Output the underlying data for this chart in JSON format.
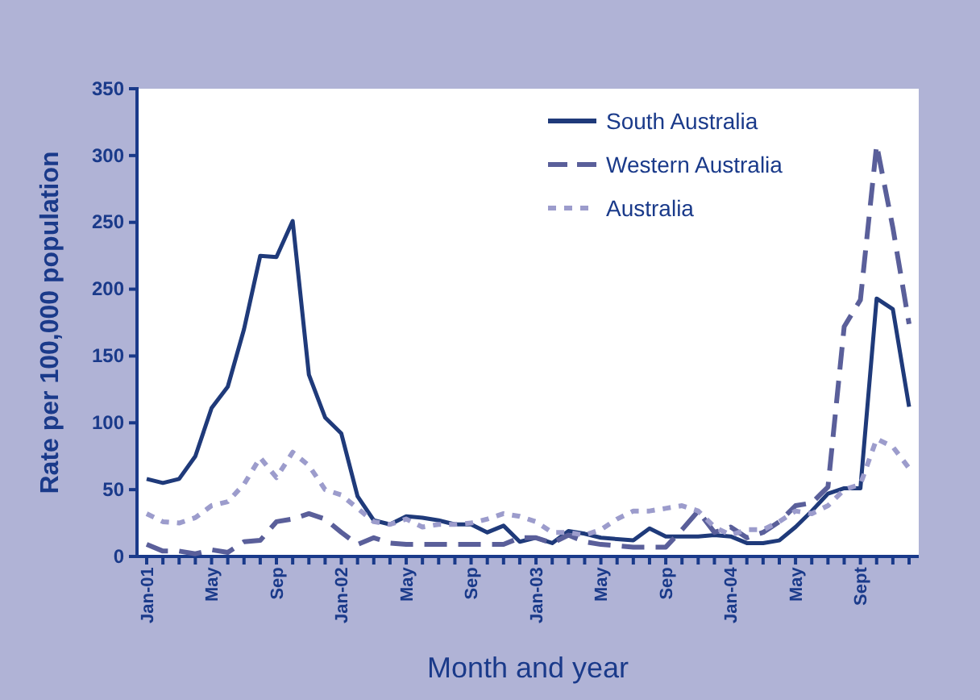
{
  "chart_data": {
    "type": "line",
    "xlabel": "Month and year",
    "ylabel": "Rate per 100,000 population",
    "categories": [
      "Jan-01",
      null,
      null,
      null,
      "May",
      null,
      null,
      null,
      "Sep",
      null,
      null,
      null,
      "Jan-02",
      null,
      null,
      null,
      "May",
      null,
      null,
      null,
      "Sep",
      null,
      null,
      null,
      "Jan-03",
      null,
      null,
      null,
      "May",
      null,
      null,
      null,
      "Sep",
      null,
      null,
      null,
      "Jan-04",
      null,
      null,
      null,
      "May",
      null,
      null,
      null,
      "Sept",
      null,
      null,
      null
    ],
    "ylim": [
      0,
      350
    ],
    "yticks": [
      0,
      50,
      100,
      150,
      200,
      250,
      300,
      350
    ],
    "grid": false,
    "legend": "top right",
    "marker": "none",
    "series": [
      {
        "name": "South Australia",
        "color": "#1f3a7a",
        "line_style": "solid",
        "values": [
          58,
          55,
          58,
          75,
          111,
          127,
          170,
          225,
          224,
          251,
          136,
          104,
          92,
          45,
          27,
          24,
          30,
          29,
          27,
          24,
          24,
          18,
          23,
          11,
          14,
          10,
          19,
          17,
          14,
          13,
          12,
          21,
          15,
          15,
          15,
          16,
          15,
          10,
          10,
          12,
          22,
          34,
          47,
          51,
          51,
          193,
          185,
          112
        ]
      },
      {
        "name": "Western Australia",
        "color": "#5a5f9a",
        "line_style": "dashed",
        "values": [
          9,
          4,
          4,
          2,
          5,
          3,
          11,
          12,
          26,
          28,
          32,
          28,
          18,
          9,
          14,
          10,
          9,
          9,
          9,
          9,
          9,
          9,
          9,
          14,
          14,
          10,
          16,
          11,
          9,
          8,
          7,
          7,
          7,
          20,
          34,
          18,
          22,
          14,
          18,
          26,
          38,
          40,
          52,
          172,
          192,
          308,
          246,
          174
        ]
      },
      {
        "name": "Australia",
        "color": "#9c9ccc",
        "line_style": "dotted",
        "values": [
          32,
          26,
          25,
          29,
          38,
          41,
          54,
          74,
          59,
          78,
          68,
          50,
          46,
          36,
          26,
          24,
          28,
          22,
          24,
          24,
          25,
          28,
          32,
          30,
          26,
          18,
          18,
          16,
          20,
          28,
          34,
          34,
          36,
          38,
          34,
          22,
          16,
          20,
          20,
          26,
          34,
          32,
          38,
          50,
          54,
          88,
          82,
          66
        ]
      }
    ]
  }
}
